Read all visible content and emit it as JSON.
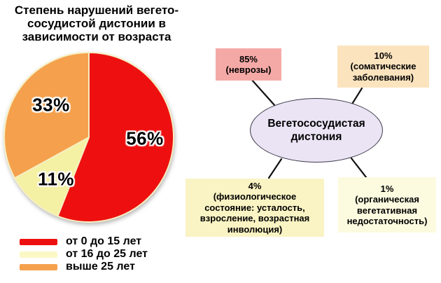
{
  "chart_data": {
    "type": "pie",
    "title": "Степень нарушений вегето-\nсосудистой дистонии в\nзависимости от возраста",
    "categories": [
      "от 0 до 15 лет",
      "от 16 до 25 лет",
      "выше 25 лет"
    ],
    "values": [
      56,
      11,
      33
    ],
    "start_angle_deg": 0,
    "direction": "clockwise",
    "legend_position": "bottom-left",
    "slices": [
      {
        "label": "56%",
        "value": 56,
        "name": "от 0 до 15 лет",
        "color": "#EE1010"
      },
      {
        "label": "11%",
        "value": 11,
        "name": "от 16 до 25 лет",
        "color": "#F4F1A4"
      },
      {
        "label": "33%",
        "value": 33,
        "name": "выше 25 лет",
        "color": "#F5A04C"
      }
    ]
  },
  "legend": {
    "items": [
      {
        "label": "от 0 до 15 лет",
        "color": "#EE1010"
      },
      {
        "label": "от 16 до 25 лет",
        "color": "#FBF8C6"
      },
      {
        "label": "выше 25 лет",
        "color": "#F5A04C"
      }
    ]
  },
  "diagram": {
    "center": {
      "text": "Вегетососудистая\nдистония",
      "fill": "#EAE4F5",
      "border": "#3E3A4A"
    },
    "nodes": [
      {
        "id": "neuroses",
        "text": "85%\n(неврозы)",
        "color": "#F5A9A6"
      },
      {
        "id": "somatic",
        "text": "10%\n(соматические\nзаболевания)",
        "color": "#FBE3BE"
      },
      {
        "id": "physiological",
        "text": "4%\n(физиологическое\nсостояние: усталость,\nвзросление, возрастная\nинволюция)",
        "color": "#FAF3C3"
      },
      {
        "id": "organic",
        "text": "1%\n(органическая\nвегетативная\nнедостаточность)",
        "color": "#FCFADF"
      }
    ],
    "line_color": "#111111"
  }
}
